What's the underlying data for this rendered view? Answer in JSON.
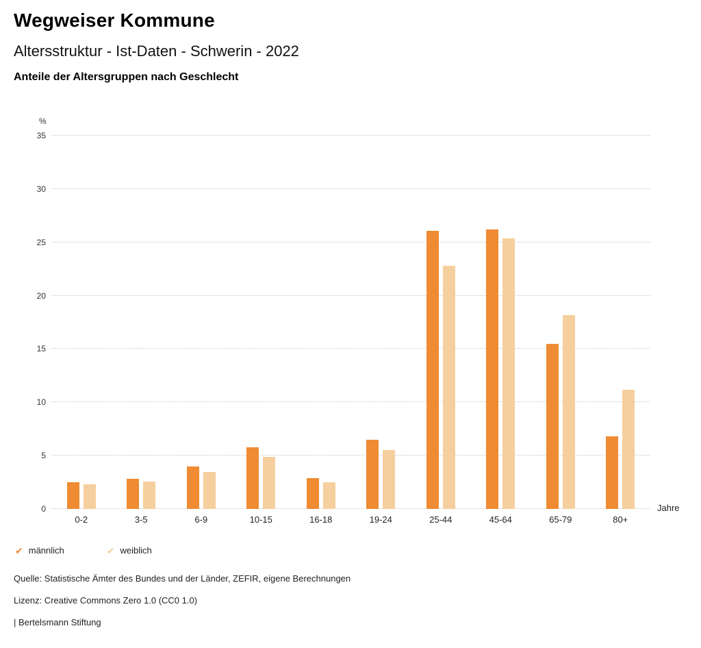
{
  "header": {
    "title": "Wegweiser Kommune",
    "subtitle": "Altersstruktur - Ist-Daten - Schwerin - 2022",
    "chart_heading": "Anteile der Altersgruppen nach Geschlecht"
  },
  "icons": {
    "legend_check": "✔"
  },
  "chart_data": {
    "type": "bar",
    "title": "Anteile der Altersgruppen nach Geschlecht",
    "categories": [
      "0-2",
      "3-5",
      "6-9",
      "10-15",
      "16-18",
      "19-24",
      "25-44",
      "45-64",
      "65-79",
      "80+"
    ],
    "series": [
      {
        "name": "männlich",
        "color": "#ef8b33",
        "values": [
          2.5,
          2.8,
          4.0,
          5.8,
          2.9,
          6.5,
          26.1,
          26.2,
          15.5,
          6.8
        ]
      },
      {
        "name": "weiblich",
        "color": "#f6cf9e",
        "values": [
          2.3,
          2.6,
          3.5,
          4.9,
          2.5,
          5.5,
          22.8,
          25.4,
          18.2,
          11.2
        ]
      }
    ],
    "ylabel": "%",
    "xlabel": "Jahre",
    "ylim": [
      0,
      35
    ],
    "yticks": [
      0,
      5,
      10,
      15,
      20,
      25,
      30,
      35
    ],
    "grid": "horizontal-dotted",
    "legend_position": "bottom-left"
  },
  "footer": {
    "source": "Quelle: Statistische Ämter des Bundes und der Länder, ZEFIR, eigene Berechnungen",
    "license": "Lizenz: Creative Commons Zero 1.0 (CC0 1.0)",
    "attribution": "| Bertelsmann Stiftung"
  }
}
